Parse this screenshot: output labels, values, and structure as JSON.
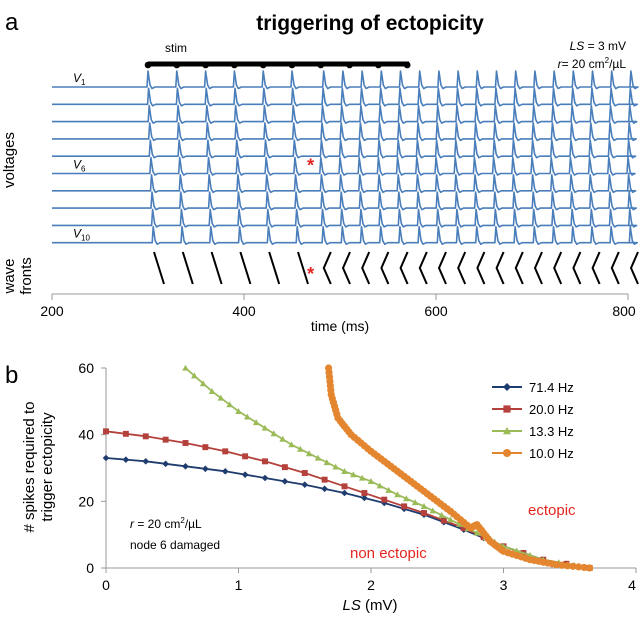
{
  "chart_data": [
    {
      "panel_label": "a",
      "type": "line",
      "title": "triggering of ectopicity",
      "xlabel": "time (ms)",
      "ylabel": "voltages",
      "wave_label_line1": "wave",
      "wave_label_line2": "fronts",
      "xlim": [
        200,
        800
      ],
      "xticks": [
        200,
        400,
        600,
        800
      ],
      "param_ls_name": "LS",
      "param_ls_value": " = 3 mV",
      "param_r_name": "r",
      "param_r_value": "= 20 cm",
      "param_r_unit": "/µL",
      "superscript_two": "2",
      "stim_label": "stim",
      "stim_interval": [
        300,
        572
      ],
      "stim_times": [
        300,
        330,
        360,
        390,
        420,
        450,
        480,
        510,
        540,
        570
      ],
      "spike_times": [
        300,
        330,
        360,
        390,
        420,
        450,
        480,
        500,
        520,
        540,
        560,
        580,
        600,
        620,
        640,
        660,
        680,
        700,
        720,
        740,
        760,
        780,
        800
      ],
      "trace_labels": [
        {
          "letter": "V",
          "subscript": "1",
          "trace": 1
        },
        {
          "letter": "V",
          "subscript": "6",
          "trace": 6
        },
        {
          "letter": "V",
          "subscript": "10",
          "trace": 10
        }
      ],
      "marker_symbol": "*",
      "ectopic_onset_time": 472,
      "wave_fronts": {
        "before_onset": "spikes propagate from node 1 to node 10",
        "after_onset": "spikes originate at node 6 and propagate in both directions"
      }
    },
    {
      "panel_label": "b",
      "type": "line",
      "xlabel_name": "LS",
      "xlabel_unit": " (mV)",
      "ylabel_line1": "# spikes required to",
      "ylabel_line2": "trigger ectopicity",
      "xlim": [
        0,
        4
      ],
      "ylim": [
        0,
        60
      ],
      "xticks": [
        0,
        1,
        2,
        3,
        4
      ],
      "yticks": [
        0,
        20,
        40,
        60
      ],
      "legend_position": "top-right",
      "annotation_r_name": "r",
      "annotation_r_value": " = 20 cm",
      "annotation_r_unit": "/µL",
      "annotation_node": "node 6 damaged",
      "region_ectopic": "ectopic",
      "region_non_ectopic": "non ectopic",
      "series": [
        {
          "name": "71.4 Hz",
          "color": "#1f3c6e",
          "marker": "diamond",
          "x": [
            0,
            0.3,
            0.6,
            0.9,
            1.2,
            1.5,
            1.8,
            2.1,
            2.4,
            2.7,
            3.0,
            3.3,
            3.65
          ],
          "y": [
            33,
            32,
            30.5,
            29,
            27,
            25,
            22.5,
            19.5,
            16,
            11.5,
            6.5,
            2.5,
            0
          ]
        },
        {
          "name": "20.0 Hz",
          "color": "#b5413c",
          "marker": "square",
          "x": [
            0,
            0.3,
            0.6,
            0.9,
            1.2,
            1.5,
            1.8,
            2.1,
            2.4,
            2.7,
            3.0,
            3.3,
            3.65
          ],
          "y": [
            41,
            39.5,
            37.5,
            35,
            32,
            28.5,
            24.5,
            20.5,
            16.5,
            12,
            6.5,
            2.5,
            0
          ]
        },
        {
          "name": "13.3 Hz",
          "color": "#9bbb59",
          "marker": "triangle",
          "x": [
            0.6,
            0.8,
            1.0,
            1.2,
            1.4,
            1.6,
            1.8,
            2.0,
            2.2,
            2.4,
            2.6,
            2.8,
            3.0,
            3.3,
            3.65
          ],
          "y": [
            60,
            53,
            47,
            42,
            37,
            33,
            29,
            26,
            22,
            18.5,
            14.5,
            10.5,
            6.5,
            2.5,
            0
          ]
        },
        {
          "name": "10.0 Hz",
          "color": "#e3862f",
          "marker": "circle",
          "x": [
            1.68,
            1.7,
            1.75,
            1.85,
            2.0,
            2.15,
            2.3,
            2.45,
            2.6,
            2.75,
            2.8,
            2.9,
            3.0,
            3.2,
            3.4,
            3.65
          ],
          "y": [
            60,
            52,
            45,
            40,
            35,
            30.5,
            26,
            21.5,
            17,
            12,
            13,
            8,
            5,
            2.5,
            1,
            0
          ]
        }
      ]
    }
  ]
}
